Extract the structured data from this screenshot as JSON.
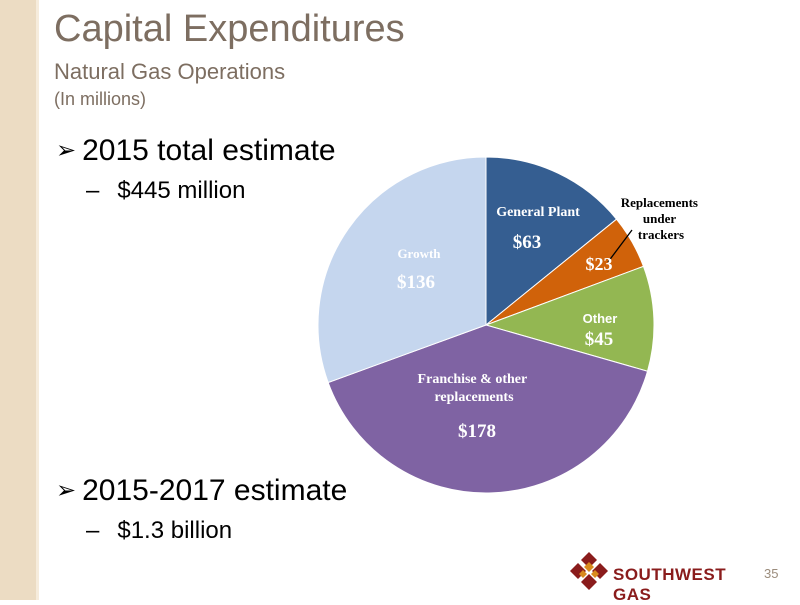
{
  "slide": {
    "title": "Capital Expenditures",
    "subtitle": "Natural Gas Operations",
    "units": "(In millions)",
    "bullet1": "2015 total estimate",
    "sub1": "$445 million",
    "bullet2": "2015-2017 estimate",
    "sub2": "$1.3 billion",
    "logo_text": "SOUTHWEST GAS",
    "page_number": "35",
    "colors": {
      "title": "#7d6e61",
      "left_bar": "#ecdcc3",
      "logo": "#8a1c1c"
    },
    "icons": {
      "bullet": "arrow-bullet-icon",
      "logo": "southwest-gas-logo-icon"
    }
  },
  "chart_data": {
    "type": "pie",
    "total": 445,
    "slices": [
      {
        "name": "General Plant",
        "label": "$63",
        "value": 63,
        "color": "#355e91"
      },
      {
        "name": "Replacements under trackers",
        "label": "$23",
        "value": 23,
        "color": "#d0620a"
      },
      {
        "name": "Other",
        "label": "$45",
        "value": 45,
        "color": "#93b752"
      },
      {
        "name": "Franchise & other replacements",
        "label": "$178",
        "value": 178,
        "color": "#7f63a3"
      },
      {
        "name": "Growth",
        "label": "$136",
        "value": 136,
        "color": "#c5d6ee"
      }
    ]
  }
}
